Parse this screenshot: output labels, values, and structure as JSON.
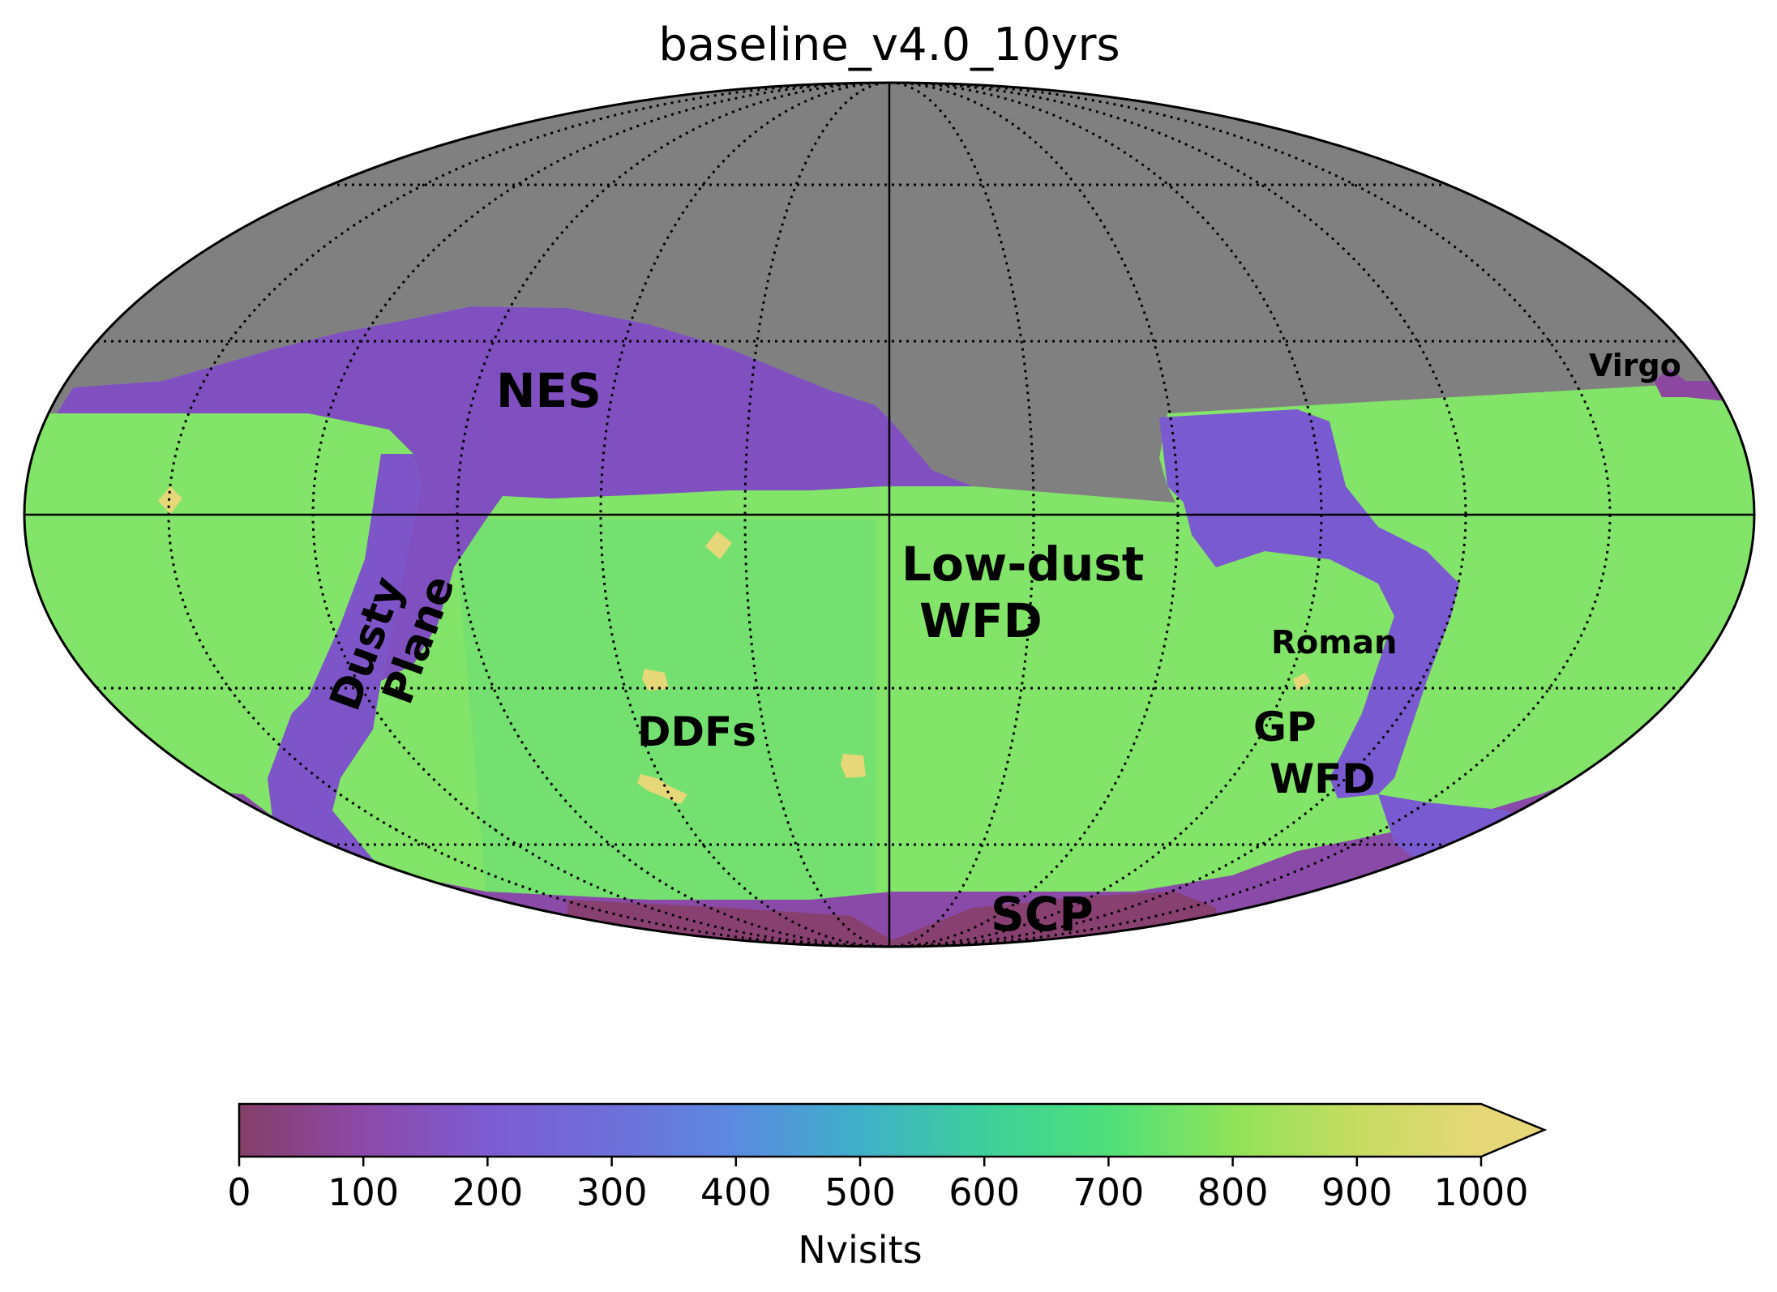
{
  "chart_data": {
    "type": "heatmap",
    "projection": "mollweide",
    "title": "baseline_v4.0_10yrs",
    "colorbar": {
      "label": "Nvisits",
      "min": 0,
      "max": 1000,
      "extend": "max",
      "ticks": [
        0,
        100,
        200,
        300,
        400,
        500,
        600,
        700,
        800,
        900,
        1000
      ],
      "tick_labels": [
        "0",
        "100",
        "200",
        "300",
        "400",
        "500",
        "600",
        "700",
        "800",
        "900",
        "1000"
      ],
      "colors": [
        "#843f68",
        "#8d49a9",
        "#7d5cd0",
        "#5b8be0",
        "#3fb0c9",
        "#3dcf9a",
        "#4fe07a",
        "#8fe35a",
        "#c6dc62",
        "#e6d778"
      ]
    },
    "unobserved_color": "#808080",
    "graticule": {
      "grid": true,
      "style": "dotted"
    },
    "regions": [
      {
        "name": "Low-dust WFD",
        "nvisits": 800
      },
      {
        "name": "Dusty Plane",
        "nvisits": 220
      },
      {
        "name": "NES",
        "nvisits": 240
      },
      {
        "name": "SCP",
        "nvisits": 150
      },
      {
        "name": "GP WFD",
        "nvisits": 780
      },
      {
        "name": "DDFs",
        "nvisits": 1000
      },
      {
        "name": "Roman",
        "nvisits": 1000
      },
      {
        "name": "Virgo",
        "nvisits": 800
      }
    ],
    "annotations": [
      {
        "id": "nes",
        "text": "NES"
      },
      {
        "id": "virgo",
        "text": "Virgo"
      },
      {
        "id": "lowdust1",
        "text": "Low-dust"
      },
      {
        "id": "lowdust2",
        "text": "WFD"
      },
      {
        "id": "dusty1",
        "text": "Dusty"
      },
      {
        "id": "dusty2",
        "text": "Plane"
      },
      {
        "id": "roman",
        "text": "Roman"
      },
      {
        "id": "ddfs",
        "text": "DDFs"
      },
      {
        "id": "gpwfd1",
        "text": "GP"
      },
      {
        "id": "gpwfd2",
        "text": "WFD"
      },
      {
        "id": "scp",
        "text": "SCP"
      }
    ]
  }
}
